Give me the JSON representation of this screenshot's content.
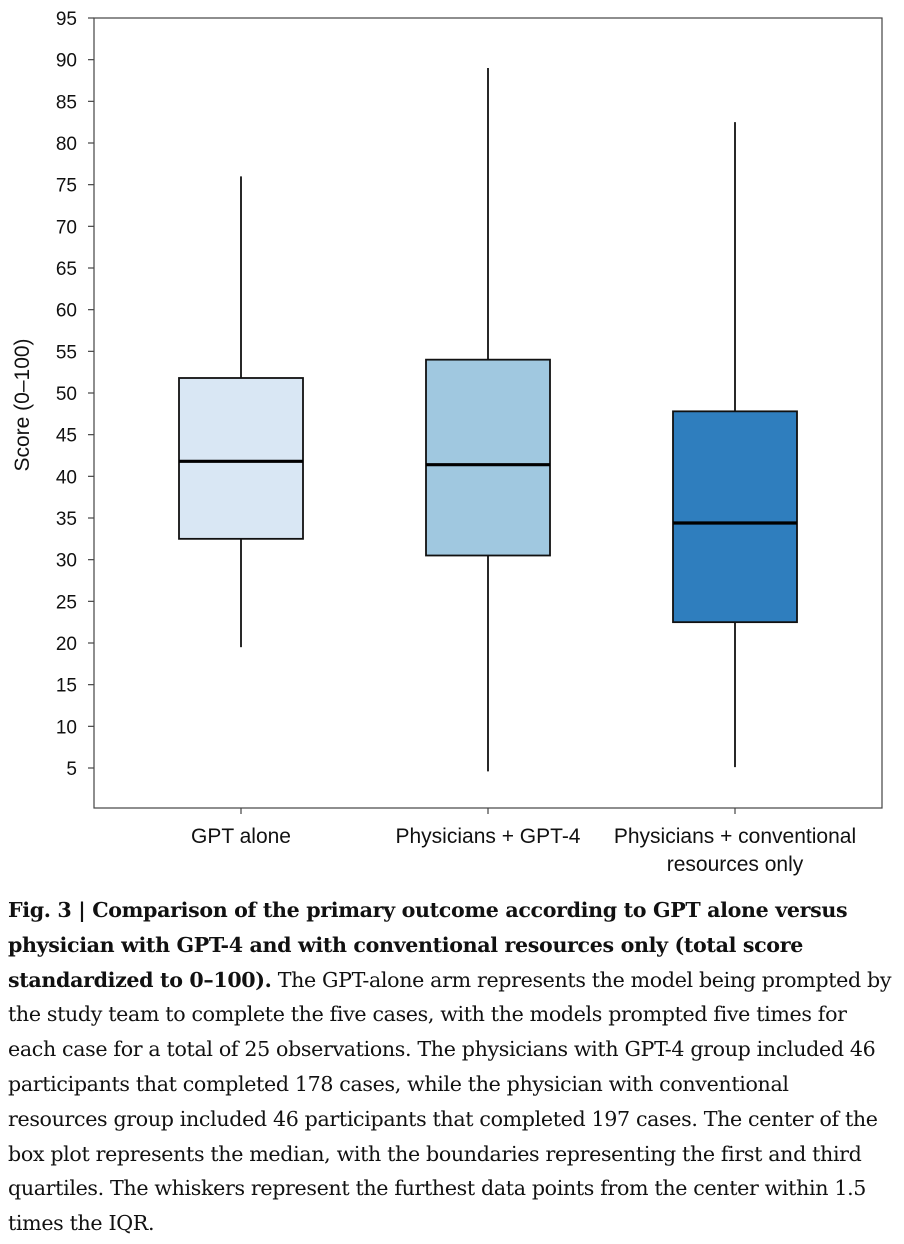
{
  "chart_data": {
    "type": "box",
    "ylabel": "Score (0–100)",
    "ylim": [
      0,
      95
    ],
    "yticks": [
      5,
      10,
      15,
      20,
      25,
      30,
      35,
      40,
      45,
      50,
      55,
      60,
      65,
      70,
      75,
      80,
      85,
      90,
      95
    ],
    "categories": [
      {
        "label_lines": [
          "GPT alone"
        ],
        "whisker_low": 19.5,
        "q1": 32.5,
        "median": 41.8,
        "q3": 51.8,
        "whisker_high": 76,
        "color": "#d9e7f4"
      },
      {
        "label_lines": [
          "Physicians + GPT-4"
        ],
        "whisker_low": 4.6,
        "q1": 30.5,
        "median": 41.4,
        "q3": 54,
        "whisker_high": 89,
        "color": "#a0c8e0"
      },
      {
        "label_lines": [
          "Physicians + conventional",
          "resources only"
        ],
        "whisker_low": 5.1,
        "q1": 22.5,
        "median": 34.4,
        "q3": 47.8,
        "whisker_high": 82.5,
        "color": "#2f7ebe"
      }
    ]
  },
  "caption": {
    "bold": "Fig. 3 | Comparison of the primary outcome according to GPT alone versus physician with GPT-4 and with conventional resources only (total score standardized to 0–100).",
    "body": "The GPT-alone arm represents the model being prompted by the study team to complete the five cases, with the models prompted five times for each case for a total of 25 observations. The physicians with GPT-4 group included 46 participants that completed 178 cases, while the physician with conventional resources group included 46 participants that completed 197 cases. The center of the box plot represents the median, with the boundaries representing the first and third quartiles. The whiskers represent the furthest data points from the center within 1.5 times the IQR."
  }
}
